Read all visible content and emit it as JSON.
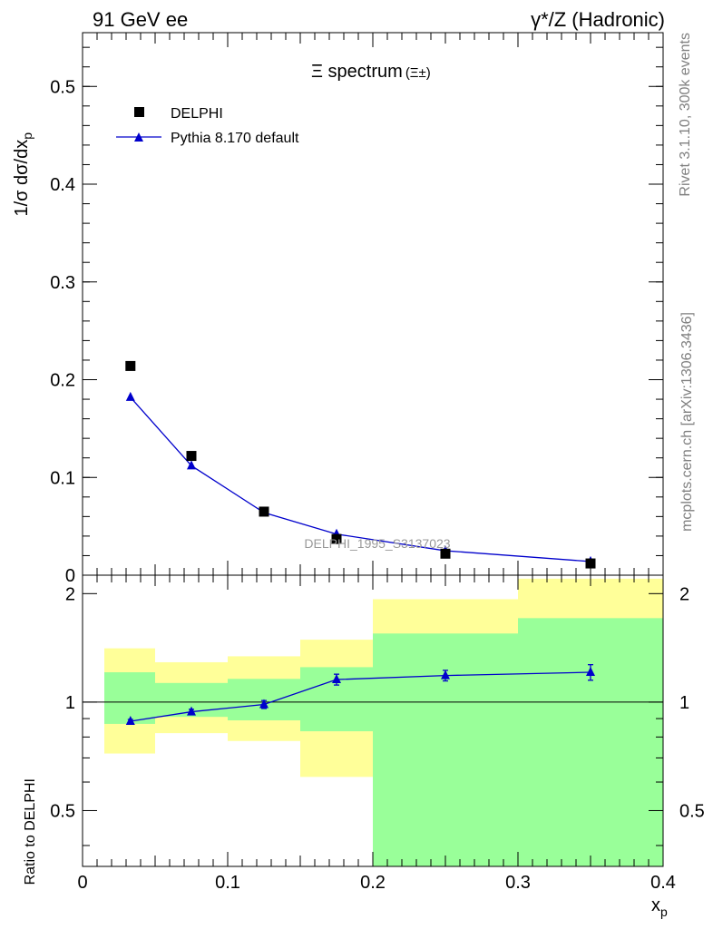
{
  "header": {
    "left": "91 GeV ee",
    "right": "γ*/Z (Hadronic)"
  },
  "side_labels": {
    "rivet": "Rivet 3.1.10,  300k events",
    "mcplots": "mcplots.cern.ch [arXiv:1306.3436]"
  },
  "colors": {
    "mc": "#0000cc",
    "data": "#000000",
    "band_inner": "#99ff99",
    "band_outer": "#ffff99"
  },
  "chart_data": [
    {
      "type": "scatter",
      "title": "Ξ spectrum",
      "title_sup": "(Ξ±)",
      "xlabel": "x",
      "xlabel_sub": "p",
      "ylabel": "1/σ dσ/dx",
      "ylabel_sub": "p",
      "xlim": [
        0,
        0.4
      ],
      "ylim": [
        0,
        0.555
      ],
      "x_ticks": [
        "0",
        "0.1",
        "0.2",
        "0.3",
        "0.4"
      ],
      "y_ticks": [
        "0",
        "0.1",
        "0.2",
        "0.3",
        "0.4",
        "0.5"
      ],
      "watermark": "DELPHI_1995_S3137023",
      "legend_position": "top-left",
      "series": [
        {
          "name": "DELPHI",
          "marker": "square",
          "x": [
            0.033,
            0.075,
            0.125,
            0.175,
            0.25,
            0.35
          ],
          "y": [
            0.214,
            0.122,
            0.065,
            0.037,
            0.022,
            0.012
          ]
        },
        {
          "name": "Pythia 8.170 default",
          "marker": "triangle",
          "x": [
            0.033,
            0.075,
            0.125,
            0.175,
            0.25,
            0.35
          ],
          "y": [
            0.182,
            0.112,
            0.064,
            0.042,
            0.025,
            0.014
          ],
          "yerr": [
            0.003,
            0.002,
            0.0015,
            0.001,
            0.0008,
            0.0006
          ]
        }
      ]
    },
    {
      "type": "line",
      "ylabel": "Ratio to DELPHI",
      "xlim": [
        0,
        0.4
      ],
      "ylim": [
        0.35,
        2.25
      ],
      "y_ticks": [
        "0.5",
        "1",
        "2"
      ],
      "reference_line": 1,
      "bands": [
        {
          "x_from": 0.015,
          "x_to": 0.05,
          "inner": [
            0.87,
            1.21
          ],
          "outer": [
            0.72,
            1.41
          ]
        },
        {
          "x_from": 0.05,
          "x_to": 0.1,
          "inner": [
            0.91,
            1.13
          ],
          "outer": [
            0.82,
            1.29
          ]
        },
        {
          "x_from": 0.1,
          "x_to": 0.15,
          "inner": [
            0.89,
            1.16
          ],
          "outer": [
            0.78,
            1.34
          ]
        },
        {
          "x_from": 0.15,
          "x_to": 0.2,
          "inner": [
            0.83,
            1.25
          ],
          "outer": [
            0.62,
            1.49
          ]
        },
        {
          "x_from": 0.2,
          "x_to": 0.3,
          "inner": [
            0.35,
            1.55
          ],
          "outer": [
            0.55,
            1.93
          ]
        },
        {
          "x_from": 0.3,
          "x_to": 0.4,
          "inner": [
            0.35,
            1.71
          ],
          "outer": [
            0.35,
            2.2
          ]
        }
      ],
      "series": [
        {
          "name": "Pythia 8.170 default",
          "x": [
            0.033,
            0.075,
            0.125,
            0.175,
            0.25,
            0.35
          ],
          "y": [
            0.885,
            0.94,
            0.985,
            1.155,
            1.185,
            1.21
          ],
          "yerr": [
            0.01,
            0.015,
            0.025,
            0.04,
            0.04,
            0.06
          ]
        }
      ]
    }
  ]
}
